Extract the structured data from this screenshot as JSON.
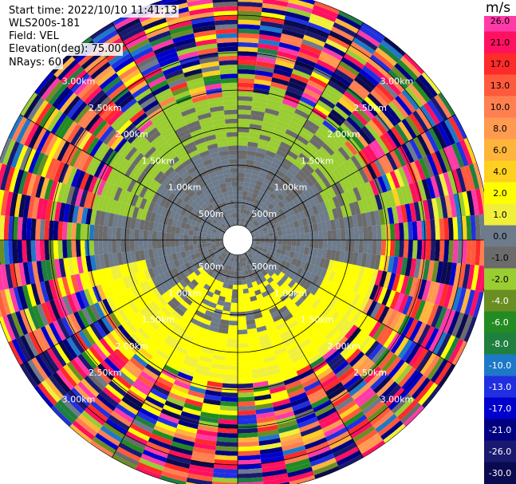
{
  "info": {
    "start_time": "Start time: 2022/10/10 11:41:13",
    "instrument": "WLS200s-181",
    "field": "Field: VEL",
    "elevation": "Elevation(deg): 75.00",
    "nrays": "NRays: 60"
  },
  "colorbar": {
    "unit": "m/s",
    "ticks": [
      "26.0",
      "21.0",
      "17.0",
      "13.0",
      "10.0",
      "8.0",
      "6.0",
      "4.0",
      "2.0",
      "1.0",
      "0.0",
      "-1.0",
      "-2.0",
      "-4.0",
      "-6.0",
      "-8.0",
      "-10.0",
      "-13.0",
      "-17.0",
      "-21.0",
      "-26.0",
      "-30.0"
    ],
    "colors": [
      "#ff3aa8",
      "#ff1060",
      "#ff2a2a",
      "#ff5a3c",
      "#ff7f50",
      "#ff9a50",
      "#ffb43c",
      "#ffd020",
      "#ffff00",
      "#f0f03a",
      "#6e7b8b",
      "#6b6b6b",
      "#9acd32",
      "#6b8e23",
      "#228b22",
      "#1f7f3f",
      "#1e78c8",
      "#2030e0",
      "#0000cd",
      "#000080",
      "#191970",
      "#0a0a50"
    ]
  },
  "chart_data": {
    "type": "heatmap",
    "projection": "polar (PPI)",
    "field": "VEL",
    "units": "m/s",
    "nrays": 60,
    "elevation_deg": 75.0,
    "range_rings_km": [
      0.5,
      1.0,
      1.5,
      2.0,
      2.5,
      3.0
    ],
    "range_ring_labels": [
      "500m",
      "1.00km",
      "1.50km",
      "2.00km",
      "2.50km",
      "3.00km"
    ],
    "max_range_km": 3.35,
    "clim": [
      -30,
      30
    ],
    "pattern_summary": {
      "inner_south_velocity": 2.0,
      "inner_north_velocity": -2.0,
      "inner_core_velocity": 0.0,
      "outer_ranges": "noisy, full color spread"
    }
  }
}
